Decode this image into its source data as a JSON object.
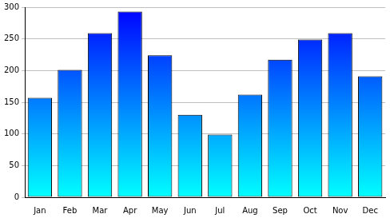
{
  "chart_data": {
    "type": "bar",
    "categories": [
      "Jan",
      "Feb",
      "Mar",
      "Apr",
      "May",
      "Jun",
      "Jul",
      "Aug",
      "Sep",
      "Oct",
      "Nov",
      "Dec"
    ],
    "values": [
      157,
      201,
      259,
      293,
      224,
      130,
      99,
      162,
      217,
      249,
      259,
      191
    ],
    "color": "#0000ff",
    "ylim": [
      0,
      300
    ],
    "yticks": [
      0,
      50,
      100,
      150,
      200,
      250,
      300
    ],
    "grid": true
  }
}
